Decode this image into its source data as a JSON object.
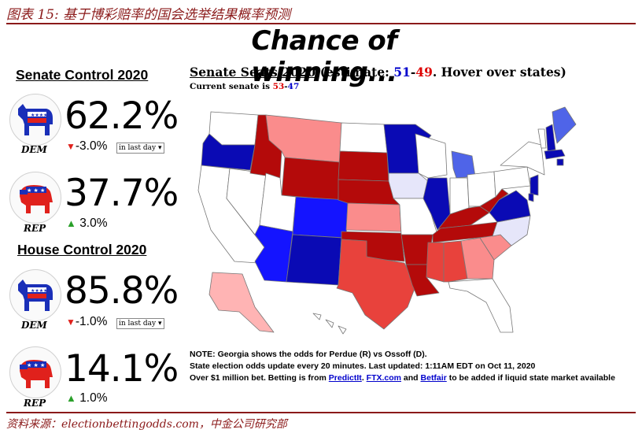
{
  "figure": {
    "caption": "图表 15:  基于博彩赔率的国会选举结果概率预测",
    "source": "资料来源：electionbettingodds.com，中金公司研究部"
  },
  "header": {
    "title": "Chance of winning..."
  },
  "senate": {
    "title": "Senate Control 2020",
    "dem": {
      "label": "DEM",
      "pct": "62.2%",
      "change": "-3.0%",
      "period": "in last day"
    },
    "rep": {
      "label": "REP",
      "pct": "37.7%",
      "change": "3.0%"
    }
  },
  "house": {
    "title": "House Control 2020",
    "dem": {
      "label": "DEM",
      "pct": "85.8%",
      "change": "-1.0%",
      "period": "in last day"
    },
    "rep": {
      "label": "REP",
      "pct": "14.1%",
      "change": "1.0%"
    }
  },
  "seats": {
    "title": "Senate Seats 2020",
    "estimate_prefix": "(estimate: ",
    "dem_seats": "51",
    "dash": "-",
    "rep_seats": "49",
    "suffix": ". Hover over states)",
    "current_prefix": "Current senate is ",
    "current_rep": "53",
    "current_dash": "-",
    "current_dem": "47"
  },
  "notes": {
    "line1": "NOTE: Georgia shows the odds for Perdue (R) vs Ossoff (D).",
    "line2": "State election odds update every 20 minutes. Last updated: 1:11AM EDT on Oct 11, 2020",
    "line3_a": "Over $1 million bet. Betting is from ",
    "link_predictit": "PredictIt",
    "line3_b": ". ",
    "link_ftx": "FTX.com",
    "line3_c": " and ",
    "link_betfair": "Betfair",
    "line3_d": " to be added if liquid state market available"
  },
  "colors": {
    "strong_dem": "#0a0ab4",
    "dem": "#1414ff",
    "lean_dem": "#4f64e8",
    "tilt_dem": "#e6e6fa",
    "strong_rep": "#b40a0a",
    "rep": "#e8423c",
    "lean_rep": "#fa8c8c",
    "tilt_rep": "#ffb4b4",
    "none": "#ffffff"
  }
}
